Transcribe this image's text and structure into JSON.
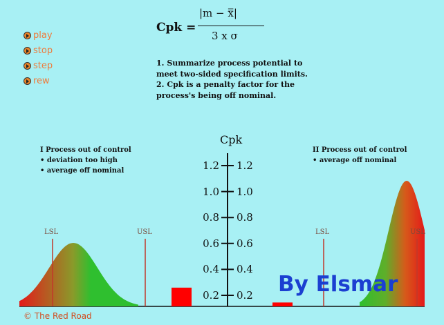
{
  "controls": [
    {
      "label": "play"
    },
    {
      "label": "stop"
    },
    {
      "label": "step"
    },
    {
      "label": "rew"
    }
  ],
  "formula": {
    "lhs": "Cpk =",
    "numerator": "|m  −  x̿|",
    "denominator": "3 x  σ"
  },
  "notes": [
    "1. Summarize process potential to meet two-sided specification limits.",
    "2. Cpk is a penalty factor for the process's being off nominal."
  ],
  "scale": {
    "title": "Cpk",
    "ticks": [
      "1.2",
      "1.0",
      "0.8",
      "0.6",
      "0.4",
      "0.2"
    ]
  },
  "panel_left": {
    "heading": "I  Process out of control",
    "bullets": [
      "• deviation too high",
      "• average off nominal"
    ],
    "lsl": "LSL",
    "usl": "USL"
  },
  "panel_right": {
    "heading": "II  Process out of control",
    "bullets": [
      "• average off nominal"
    ],
    "lsl": "LSL",
    "usl": "USL"
  },
  "bars": [
    {
      "name": "left-cpk-bar",
      "value": 0.3
    },
    {
      "name": "right-cpk-bar",
      "value": 0.2
    }
  ],
  "watermark": "By Elsmar",
  "footer": "© The Red Road",
  "colors": {
    "background": "#a8f0f4",
    "curve_green": "#2fbf2f",
    "curve_red": "#e41a1a",
    "bar_red": "#ff0000",
    "limit_line": "#c0392b",
    "watermark": "#1b3fd1"
  }
}
